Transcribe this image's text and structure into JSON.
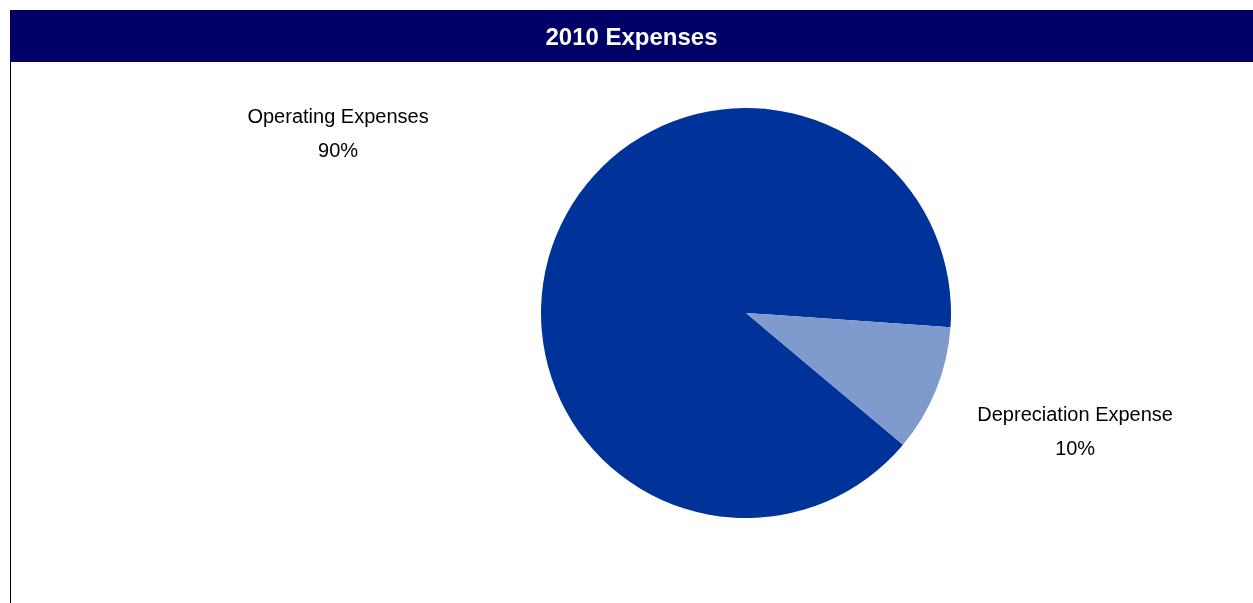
{
  "chart_data": {
    "type": "pie",
    "title": "2010 Expenses",
    "categories": [
      "Operating Expenses",
      "Depreciation Expense"
    ],
    "values": [
      90,
      10
    ],
    "colors": [
      "#003399",
      "#7f9acc"
    ],
    "value_labels": [
      "90%",
      "10%"
    ]
  }
}
